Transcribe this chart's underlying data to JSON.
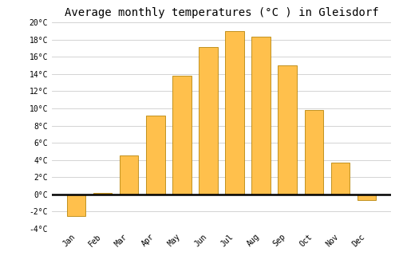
{
  "title": "Average monthly temperatures (°C ) in Gleisdorf",
  "months": [
    "Jan",
    "Feb",
    "Mar",
    "Apr",
    "May",
    "Jun",
    "Jul",
    "Aug",
    "Sep",
    "Oct",
    "Nov",
    "Dec"
  ],
  "values": [
    -2.5,
    0.2,
    4.5,
    9.2,
    13.8,
    17.1,
    19.0,
    18.3,
    15.0,
    9.8,
    3.7,
    -0.7
  ],
  "bar_color": "#FFC04C",
  "bar_edge_color": "#B8860B",
  "background_color": "#ffffff",
  "grid_color": "#cccccc",
  "ylim": [
    -4,
    20
  ],
  "yticks": [
    -4,
    -2,
    0,
    2,
    4,
    6,
    8,
    10,
    12,
    14,
    16,
    18,
    20
  ],
  "ytick_labels": [
    "-4°C",
    "-2°C",
    "0°C",
    "2°C",
    "4°C",
    "6°C",
    "8°C",
    "10°C",
    "12°C",
    "14°C",
    "16°C",
    "18°C",
    "20°C"
  ],
  "title_fontsize": 10,
  "tick_fontsize": 7,
  "bar_width": 0.7
}
